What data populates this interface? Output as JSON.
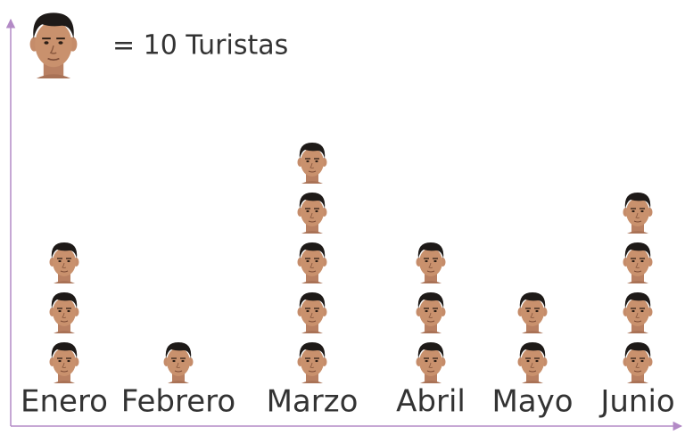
{
  "chart_data": {
    "type": "pictograph",
    "key": {
      "value": 10,
      "label": "= 10 Turistas"
    },
    "categories": [
      "Enero",
      "Febrero",
      "Marzo",
      "Abril",
      "Mayo",
      "Junio"
    ],
    "values": [
      30,
      10,
      50,
      30,
      20,
      40
    ]
  }
}
